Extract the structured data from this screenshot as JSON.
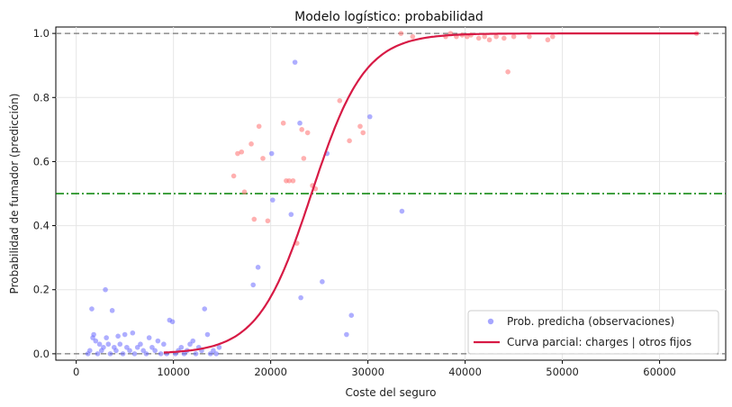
{
  "chart_data": {
    "type": "scatter",
    "title": "Modelo logístico: probabilidad",
    "xlabel": "Coste del seguro",
    "ylabel": "Probabilidad de fumador (predicción)",
    "xlim": [
      -2100,
      66800
    ],
    "ylim": [
      -0.02,
      1.02
    ],
    "xticks": [
      0,
      10000,
      20000,
      30000,
      40000,
      50000,
      60000
    ],
    "yticks": [
      0.0,
      0.2,
      0.4,
      0.6,
      0.8,
      1.0
    ],
    "xtick_labels": [
      "0",
      "10000",
      "20000",
      "30000",
      "40000",
      "50000",
      "60000"
    ],
    "ytick_labels": [
      "0.0",
      "0.2",
      "0.4",
      "0.6",
      "0.8",
      "1.0"
    ],
    "grid": true,
    "legend_position": "lower-right",
    "hlines": [
      {
        "y": 0.0,
        "style": "dashed",
        "color": "#777777"
      },
      {
        "y": 1.0,
        "style": "dashed",
        "color": "#777777"
      },
      {
        "y": 0.5,
        "style": "dashdot",
        "color": "#008000"
      }
    ],
    "series": [
      {
        "name": "Prob. predicha (observaciones)",
        "kind": "scatter",
        "color": "#6b6bff",
        "points_blue": [
          [
            1200,
            0.0
          ],
          [
            1400,
            0.01
          ],
          [
            1600,
            0.14
          ],
          [
            1700,
            0.05
          ],
          [
            1800,
            0.06
          ],
          [
            2000,
            0.04
          ],
          [
            2200,
            0.0
          ],
          [
            2400,
            0.03
          ],
          [
            2600,
            0.01
          ],
          [
            2800,
            0.02
          ],
          [
            3000,
            0.2
          ],
          [
            3100,
            0.05
          ],
          [
            3300,
            0.03
          ],
          [
            3500,
            0.0
          ],
          [
            3700,
            0.135
          ],
          [
            3900,
            0.02
          ],
          [
            4100,
            0.01
          ],
          [
            4300,
            0.055
          ],
          [
            4500,
            0.03
          ],
          [
            4800,
            0.0
          ],
          [
            5000,
            0.06
          ],
          [
            5200,
            0.02
          ],
          [
            5500,
            0.01
          ],
          [
            5800,
            0.065
          ],
          [
            6000,
            0.0
          ],
          [
            6300,
            0.02
          ],
          [
            6600,
            0.03
          ],
          [
            6900,
            0.01
          ],
          [
            7200,
            0.0
          ],
          [
            7500,
            0.05
          ],
          [
            7800,
            0.02
          ],
          [
            8100,
            0.01
          ],
          [
            8400,
            0.04
          ],
          [
            8700,
            0.0
          ],
          [
            9000,
            0.03
          ],
          [
            9300,
            0.0
          ],
          [
            9600,
            0.105
          ],
          [
            9900,
            0.1
          ],
          [
            10200,
            0.0
          ],
          [
            10500,
            0.01
          ],
          [
            10800,
            0.02
          ],
          [
            11100,
            0.0
          ],
          [
            11400,
            0.01
          ],
          [
            11700,
            0.03
          ],
          [
            12000,
            0.04
          ],
          [
            12300,
            0.0
          ],
          [
            12600,
            0.02
          ],
          [
            12900,
            0.01
          ],
          [
            13200,
            0.14
          ],
          [
            13500,
            0.06
          ],
          [
            13800,
            0.0
          ],
          [
            14100,
            0.01
          ],
          [
            14400,
            0.0
          ],
          [
            14700,
            0.02
          ],
          [
            18200,
            0.215
          ],
          [
            18700,
            0.27
          ],
          [
            20100,
            0.625
          ],
          [
            20200,
            0.48
          ],
          [
            22100,
            0.435
          ],
          [
            22500,
            0.91
          ],
          [
            23000,
            0.72
          ],
          [
            23100,
            0.175
          ],
          [
            25300,
            0.225
          ],
          [
            25800,
            0.625
          ],
          [
            27800,
            0.06
          ],
          [
            28300,
            0.12
          ],
          [
            30200,
            0.74
          ],
          [
            33500,
            0.445
          ]
        ]
      },
      {
        "name": "",
        "kind": "scatter",
        "color": "#ff7b7b",
        "points_red": [
          [
            16200,
            0.555
          ],
          [
            16600,
            0.625
          ],
          [
            17000,
            0.63
          ],
          [
            17300,
            0.505
          ],
          [
            18000,
            0.655
          ],
          [
            18300,
            0.42
          ],
          [
            18800,
            0.71
          ],
          [
            19200,
            0.61
          ],
          [
            19700,
            0.415
          ],
          [
            21300,
            0.72
          ],
          [
            21600,
            0.54
          ],
          [
            21900,
            0.54
          ],
          [
            22300,
            0.54
          ],
          [
            22700,
            0.345
          ],
          [
            23200,
            0.7
          ],
          [
            23400,
            0.61
          ],
          [
            23800,
            0.69
          ],
          [
            24300,
            0.525
          ],
          [
            24600,
            0.515
          ],
          [
            27100,
            0.79
          ],
          [
            28100,
            0.665
          ],
          [
            29200,
            0.71
          ],
          [
            29500,
            0.69
          ],
          [
            33400,
            1.0
          ],
          [
            34600,
            0.99
          ],
          [
            38000,
            0.99
          ],
          [
            38500,
            1.0
          ],
          [
            39100,
            0.99
          ],
          [
            39700,
            0.995
          ],
          [
            40200,
            0.99
          ],
          [
            40600,
            0.995
          ],
          [
            41400,
            0.985
          ],
          [
            42000,
            0.99
          ],
          [
            42500,
            0.98
          ],
          [
            43200,
            0.99
          ],
          [
            44000,
            0.985
          ],
          [
            44400,
            0.88
          ],
          [
            45000,
            0.99
          ],
          [
            46600,
            0.99
          ],
          [
            48500,
            0.98
          ],
          [
            49000,
            0.99
          ],
          [
            63800,
            1.0
          ]
        ]
      },
      {
        "name": "Curva parcial: charges | otros fijos",
        "kind": "line",
        "color": "#d71a45",
        "logistic_x0": 24200,
        "logistic_k": 0.000365,
        "x_range": [
          9000,
          64000
        ]
      }
    ]
  }
}
